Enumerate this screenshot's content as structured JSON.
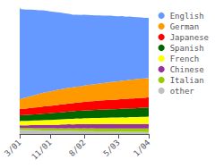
{
  "chart_data": {
    "type": "area",
    "stacked": true,
    "categories": [
      "3/01",
      null,
      null,
      null,
      null,
      null,
      null,
      null,
      "11/01",
      null,
      null,
      null,
      null,
      null,
      null,
      null,
      null,
      "8/02",
      null,
      null,
      null,
      null,
      null,
      null,
      null,
      null,
      "5/03",
      null,
      null,
      null,
      null,
      null,
      null,
      null,
      "1/04"
    ],
    "ylim": [
      0,
      100
    ],
    "yticks": [],
    "tick_labels": "x",
    "grid": false,
    "legend": "right",
    "series": [
      {
        "name": "other",
        "color": "#c0c0c0",
        "values": [
          3.5,
          3.4,
          3.3,
          3.2,
          3.1,
          3.0,
          2.9,
          2.9,
          2.8,
          2.8,
          2.7,
          2.7,
          2.6,
          2.6,
          2.5,
          2.5,
          2.4,
          2.4,
          2.3,
          2.3,
          2.2,
          2.2,
          2.1,
          2.1,
          2.0,
          2.0,
          1.9,
          1.9,
          1.8,
          1.8,
          1.7,
          1.7,
          1.7,
          1.6,
          1.6
        ]
      },
      {
        "name": "Italian",
        "color": "#99cc00",
        "values": [
          1.5,
          1.5,
          1.5,
          1.6,
          1.6,
          1.6,
          1.7,
          1.7,
          1.8,
          1.8,
          1.8,
          1.9,
          1.9,
          2.0,
          2.0,
          2.1,
          2.1,
          2.2,
          2.2,
          2.3,
          2.3,
          2.3,
          2.4,
          2.4,
          2.5,
          2.5,
          2.5,
          2.6,
          2.6,
          2.7,
          2.7,
          2.7,
          2.8,
          2.8,
          2.9
        ]
      },
      {
        "name": "Chinese",
        "color": "#993399",
        "values": [
          2.0,
          2.1,
          2.2,
          2.3,
          2.4,
          2.5,
          2.6,
          2.7,
          2.7,
          2.8,
          2.9,
          3.0,
          3.1,
          3.2,
          3.2,
          3.3,
          3.3,
          3.4,
          3.4,
          3.4,
          3.4,
          3.4,
          3.5,
          3.5,
          3.5,
          3.5,
          3.5,
          3.5,
          3.5,
          3.5,
          3.6,
          3.6,
          3.6,
          3.6,
          3.6
        ]
      },
      {
        "name": "French",
        "color": "#ffff00",
        "values": [
          3.5,
          3.5,
          3.6,
          3.7,
          3.8,
          3.8,
          3.9,
          4.0,
          4.0,
          4.1,
          4.2,
          4.2,
          4.3,
          4.4,
          4.5,
          4.6,
          4.6,
          4.7,
          4.8,
          4.8,
          4.9,
          5.0,
          5.0,
          5.1,
          5.2,
          5.2,
          5.3,
          5.4,
          5.4,
          5.5,
          5.5,
          5.6,
          5.6,
          5.7,
          5.8
        ]
      },
      {
        "name": "Spanish",
        "color": "#006600",
        "values": [
          4.5,
          4.6,
          4.7,
          4.8,
          4.9,
          5.0,
          5.1,
          5.2,
          5.3,
          5.4,
          5.5,
          5.6,
          5.7,
          5.8,
          5.9,
          6.0,
          6.1,
          6.2,
          6.3,
          6.3,
          6.4,
          6.5,
          6.5,
          6.6,
          6.7,
          6.7,
          6.8,
          6.9,
          7.0,
          7.1,
          7.1,
          7.2,
          7.3,
          7.3,
          7.4
        ]
      },
      {
        "name": "Japanese",
        "color": "#ff0000",
        "values": [
          5.0,
          5.1,
          5.2,
          5.3,
          5.5,
          5.6,
          5.7,
          5.8,
          5.9,
          6.0,
          6.2,
          6.3,
          6.4,
          6.5,
          6.6,
          6.7,
          6.8,
          6.9,
          7.0,
          7.1,
          7.2,
          7.3,
          7.4,
          7.4,
          7.5,
          7.5,
          7.6,
          7.7,
          7.7,
          7.8,
          7.8,
          7.9,
          8.0,
          8.0,
          8.1
        ]
      },
      {
        "name": "German",
        "color": "#ff9900",
        "values": [
          8.0,
          8.5,
          9.0,
          9.5,
          10.0,
          10.5,
          11.0,
          11.3,
          11.5,
          11.8,
          12.0,
          12.2,
          12.4,
          12.5,
          12.6,
          12.7,
          12.8,
          13.0,
          13.2,
          13.3,
          13.5,
          13.7,
          13.8,
          14.0,
          14.2,
          14.4,
          14.5,
          14.7,
          14.8,
          15.0,
          15.1,
          15.2,
          15.3,
          15.4,
          15.5
        ]
      },
      {
        "name": "English",
        "color": "#6699ff",
        "values": [
          72,
          71,
          70,
          69,
          68,
          67,
          66,
          65,
          64,
          63,
          62,
          61,
          60,
          59,
          58,
          57.5,
          57,
          56.5,
          56,
          55.5,
          55,
          54.5,
          54,
          53.5,
          53,
          52.5,
          52,
          51.5,
          51,
          50.5,
          50,
          49.5,
          49,
          48.5,
          48
        ]
      }
    ]
  }
}
